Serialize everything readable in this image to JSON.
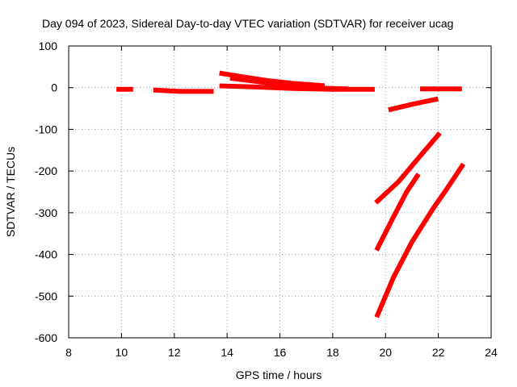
{
  "chart_data": {
    "type": "line",
    "title": "Day 094 of 2023, Sidereal Day-to-day VTEC variation (SDTVAR) for receiver ucag",
    "xlabel": "GPS time / hours",
    "ylabel": "SDTVAR / TECUs",
    "xlim": [
      8,
      24
    ],
    "ylim": [
      -600,
      100
    ],
    "xticks": [
      "8",
      "10",
      "12",
      "14",
      "16",
      "18",
      "20",
      "22",
      "24"
    ],
    "yticks": [
      "100",
      "0",
      "-100",
      "-200",
      "-300",
      "-400",
      "-500",
      "-600"
    ],
    "xtick_values": [
      8,
      10,
      12,
      14,
      16,
      18,
      20,
      22,
      24
    ],
    "ytick_values": [
      100,
      0,
      -100,
      -200,
      -300,
      -400,
      -500,
      -600
    ],
    "grid": true,
    "series_color": "#ff0000",
    "series": [
      {
        "x": [
          9.9,
          10.35
        ],
        "y": [
          -4,
          -4
        ]
      },
      {
        "x": [
          11.3,
          12.2,
          13.4
        ],
        "y": [
          -6,
          -9,
          -9
        ]
      },
      {
        "x": [
          13.8,
          14.5,
          15.5,
          16.5,
          17.6
        ],
        "y": [
          34,
          27,
          17,
          10,
          5
        ]
      },
      {
        "x": [
          13.8,
          15.0,
          16.5,
          18.0,
          19.5
        ],
        "y": [
          4,
          2,
          -2,
          -4,
          -4
        ]
      },
      {
        "x": [
          14.2,
          16.0,
          17.5,
          18.5
        ],
        "y": [
          22,
          8,
          -1,
          -3
        ]
      },
      {
        "x": [
          21.4,
          22.0,
          22.8
        ],
        "y": [
          -3,
          -3,
          -3
        ]
      },
      {
        "x": [
          20.2,
          21.0,
          21.9
        ],
        "y": [
          -52,
          -40,
          -28
        ]
      },
      {
        "x": [
          19.7,
          20.5,
          21.3,
          22.0
        ],
        "y": [
          -272,
          -225,
          -165,
          -113
        ]
      },
      {
        "x": [
          19.7,
          20.3,
          20.8,
          21.2
        ],
        "y": [
          -385,
          -310,
          -250,
          -212
        ]
      },
      {
        "x": [
          19.7,
          20.3,
          21.0,
          21.8,
          22.3,
          22.9
        ],
        "y": [
          -545,
          -455,
          -370,
          -290,
          -245,
          -188
        ]
      }
    ]
  }
}
